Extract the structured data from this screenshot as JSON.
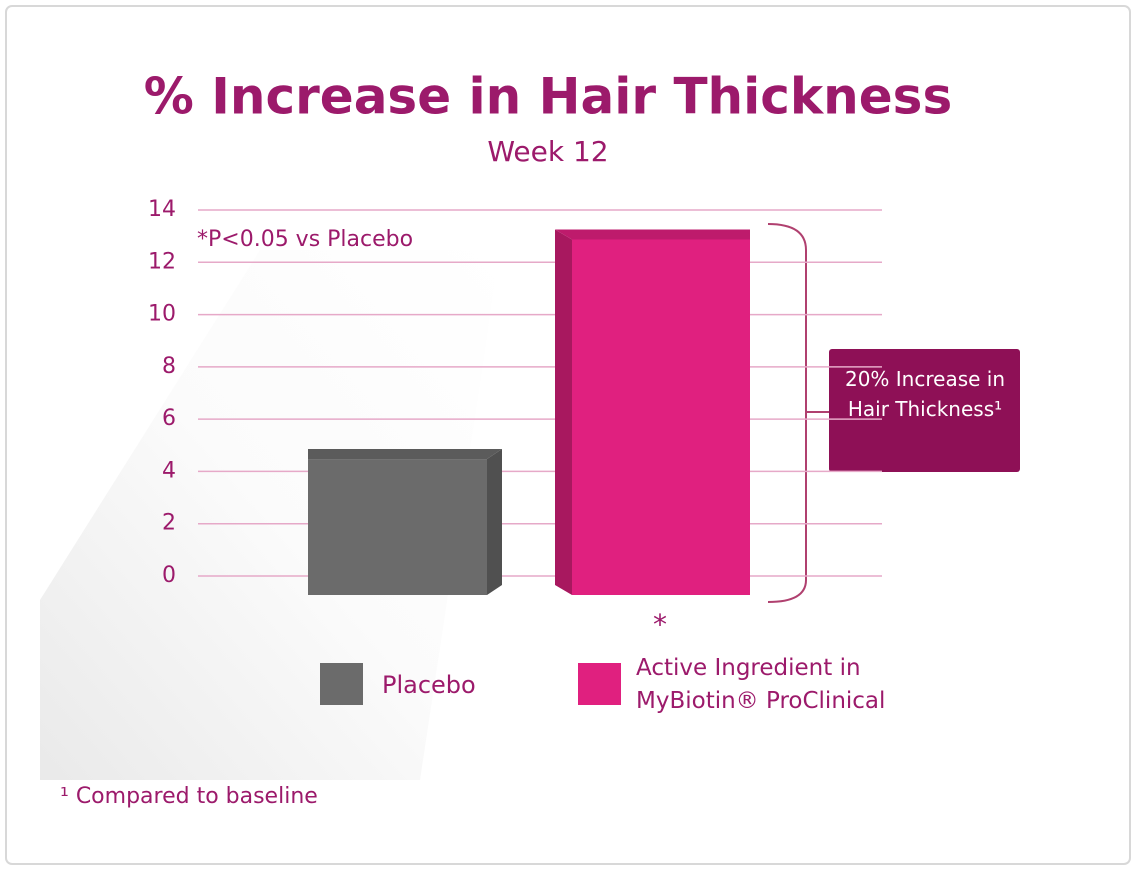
{
  "chart_data": {
    "type": "bar",
    "title": "% Increase in Hair Thickness",
    "subtitle": "Week 12",
    "categories": [
      "Placebo",
      "Active Ingredient in MyBiotin® ProClinical"
    ],
    "values": [
      5.2,
      13.6
    ],
    "colors": [
      "#6b6b6b",
      "#e0207f"
    ],
    "ylim": [
      0,
      14
    ],
    "yticks": [
      0,
      2,
      4,
      6,
      8,
      10,
      12,
      14
    ],
    "grid": true,
    "note": "*P<0.05 vs Placebo",
    "significance_marker": "*",
    "callout": "20% Increase in Hair Thickness¹",
    "footnote": "¹ Compared to baseline"
  }
}
